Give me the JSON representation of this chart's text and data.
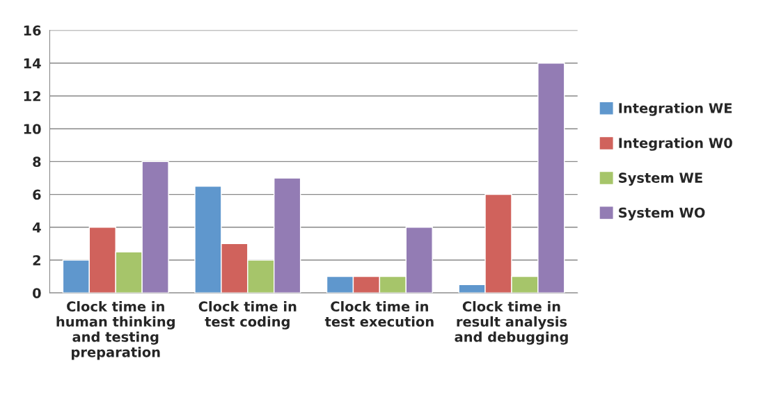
{
  "chart_data": {
    "type": "bar",
    "categories": [
      "Clock time in\nhuman thinking\nand testing\npreparation",
      "Clock time in\ntest coding",
      "Clock time in\ntest execution",
      "Clock time in\nresult analysis\nand debugging"
    ],
    "series": [
      {
        "name": "Integration WE",
        "color": "#5f97cd",
        "values": [
          2,
          6.5,
          1,
          0.5
        ]
      },
      {
        "name": "Integration W0",
        "color": "#d0625c",
        "values": [
          4,
          3,
          1,
          6
        ]
      },
      {
        "name": "System WE",
        "color": "#a6c56a",
        "values": [
          2.5,
          2,
          1,
          1
        ]
      },
      {
        "name": "System WO",
        "color": "#937cb4",
        "values": [
          8,
          7,
          4,
          14
        ]
      }
    ],
    "ylim": [
      0,
      16
    ],
    "yticks": [
      0,
      2,
      4,
      6,
      8,
      10,
      12,
      14,
      16
    ],
    "grid": "y",
    "legend": "right"
  }
}
